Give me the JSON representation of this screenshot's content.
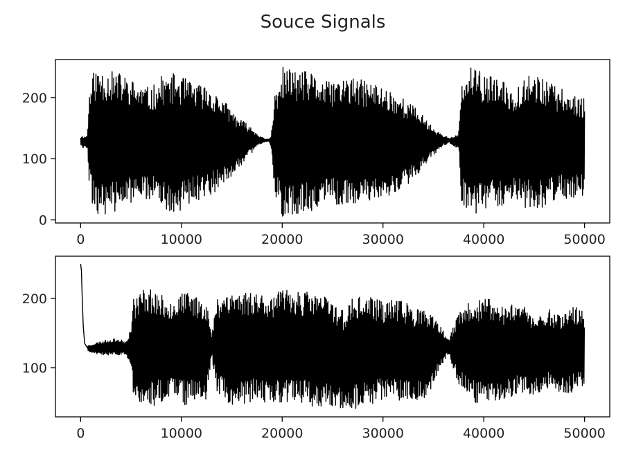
{
  "chart_data": {
    "title": "Souce Signals",
    "panels": [
      {
        "type": "line",
        "series_color": "#000000",
        "xlim": [
          -2500,
          52500
        ],
        "ylim": [
          -5,
          262
        ],
        "xticks": [
          0,
          10000,
          20000,
          30000,
          40000,
          50000
        ],
        "xtick_labels": [
          "0",
          "10000",
          "20000",
          "30000",
          "40000",
          "50000"
        ],
        "yticks": [
          0,
          100,
          200
        ],
        "ytick_labels": [
          "0",
          "100",
          "200"
        ],
        "x_end": 50000,
        "envelope": [
          [
            0,
            137,
            120
          ],
          [
            300,
            138,
            117
          ],
          [
            400,
            136,
            119
          ],
          [
            700,
            140,
            115
          ],
          [
            800,
            200,
            60
          ],
          [
            1200,
            240,
            20
          ],
          [
            1800,
            250,
            5
          ],
          [
            2500,
            245,
            10
          ],
          [
            4000,
            240,
            15
          ],
          [
            5500,
            225,
            30
          ],
          [
            7000,
            215,
            35
          ],
          [
            8000,
            235,
            15
          ],
          [
            9500,
            240,
            10
          ],
          [
            11000,
            225,
            30
          ],
          [
            12500,
            220,
            35
          ],
          [
            14000,
            200,
            55
          ],
          [
            15500,
            170,
            80
          ],
          [
            17000,
            150,
            110
          ],
          [
            17700,
            138,
            122
          ],
          [
            18300,
            132,
            128
          ],
          [
            18700,
            132,
            128
          ],
          [
            18900,
            138,
            118
          ],
          [
            19300,
            210,
            40
          ],
          [
            20000,
            250,
            5
          ],
          [
            21500,
            245,
            10
          ],
          [
            23000,
            240,
            15
          ],
          [
            24500,
            225,
            30
          ],
          [
            26000,
            235,
            20
          ],
          [
            27500,
            230,
            25
          ],
          [
            29000,
            225,
            30
          ],
          [
            30500,
            215,
            35
          ],
          [
            32000,
            200,
            50
          ],
          [
            33500,
            180,
            75
          ],
          [
            35000,
            150,
            105
          ],
          [
            36000,
            138,
            122
          ],
          [
            36600,
            134,
            126
          ],
          [
            37000,
            136,
            120
          ],
          [
            37500,
            140,
            118
          ],
          [
            37800,
            220,
            30
          ],
          [
            38500,
            250,
            5
          ],
          [
            40000,
            240,
            15
          ],
          [
            41500,
            230,
            20
          ],
          [
            43000,
            215,
            35
          ],
          [
            44500,
            245,
            15
          ],
          [
            46000,
            230,
            20
          ],
          [
            47500,
            215,
            35
          ],
          [
            48500,
            210,
            35
          ],
          [
            50000,
            200,
            40
          ]
        ],
        "seed": 11
      },
      {
        "type": "line",
        "series_color": "#000000",
        "xlim": [
          -2500,
          52500
        ],
        "ylim": [
          29,
          261
        ],
        "xticks": [
          0,
          10000,
          20000,
          30000,
          40000,
          50000
        ],
        "xtick_labels": [
          "0",
          "10000",
          "20000",
          "30000",
          "40000",
          "50000"
        ],
        "yticks": [
          100,
          200
        ],
        "ytick_labels": [
          "100",
          "200"
        ],
        "x_end": 50000,
        "spike": [
          [
            0,
            250
          ],
          [
            80,
            240
          ],
          [
            160,
            200
          ],
          [
            260,
            160
          ],
          [
            400,
            135
          ],
          [
            700,
            128
          ]
        ],
        "envelope": [
          [
            700,
            132,
            124
          ],
          [
            1500,
            136,
            120
          ],
          [
            2500,
            140,
            118
          ],
          [
            3500,
            142,
            118
          ],
          [
            4500,
            138,
            120
          ],
          [
            5000,
            160,
            100
          ],
          [
            5200,
            200,
            60
          ],
          [
            6500,
            220,
            40
          ],
          [
            8000,
            205,
            50
          ],
          [
            9000,
            200,
            55
          ],
          [
            10500,
            210,
            45
          ],
          [
            11500,
            205,
            50
          ],
          [
            12500,
            200,
            55
          ],
          [
            13000,
            145,
            118
          ],
          [
            13500,
            200,
            65
          ],
          [
            14500,
            215,
            45
          ],
          [
            16000,
            210,
            45
          ],
          [
            17500,
            212,
            50
          ],
          [
            19000,
            205,
            50
          ],
          [
            20500,
            215,
            45
          ],
          [
            22000,
            210,
            50
          ],
          [
            23500,
            210,
            40
          ],
          [
            25000,
            200,
            45
          ],
          [
            26000,
            185,
            35
          ],
          [
            27000,
            200,
            40
          ],
          [
            28500,
            205,
            45
          ],
          [
            30000,
            195,
            55
          ],
          [
            31500,
            200,
            50
          ],
          [
            33000,
            190,
            50
          ],
          [
            34500,
            180,
            55
          ],
          [
            35500,
            165,
            95
          ],
          [
            36500,
            140,
            120
          ],
          [
            37500,
            180,
            75
          ],
          [
            39000,
            200,
            50
          ],
          [
            40500,
            200,
            45
          ],
          [
            42000,
            190,
            55
          ],
          [
            43500,
            200,
            60
          ],
          [
            45000,
            175,
            60
          ],
          [
            46500,
            185,
            70
          ],
          [
            47500,
            180,
            60
          ],
          [
            49000,
            190,
            65
          ],
          [
            50000,
            180,
            75
          ]
        ],
        "seed": 23
      }
    ]
  }
}
